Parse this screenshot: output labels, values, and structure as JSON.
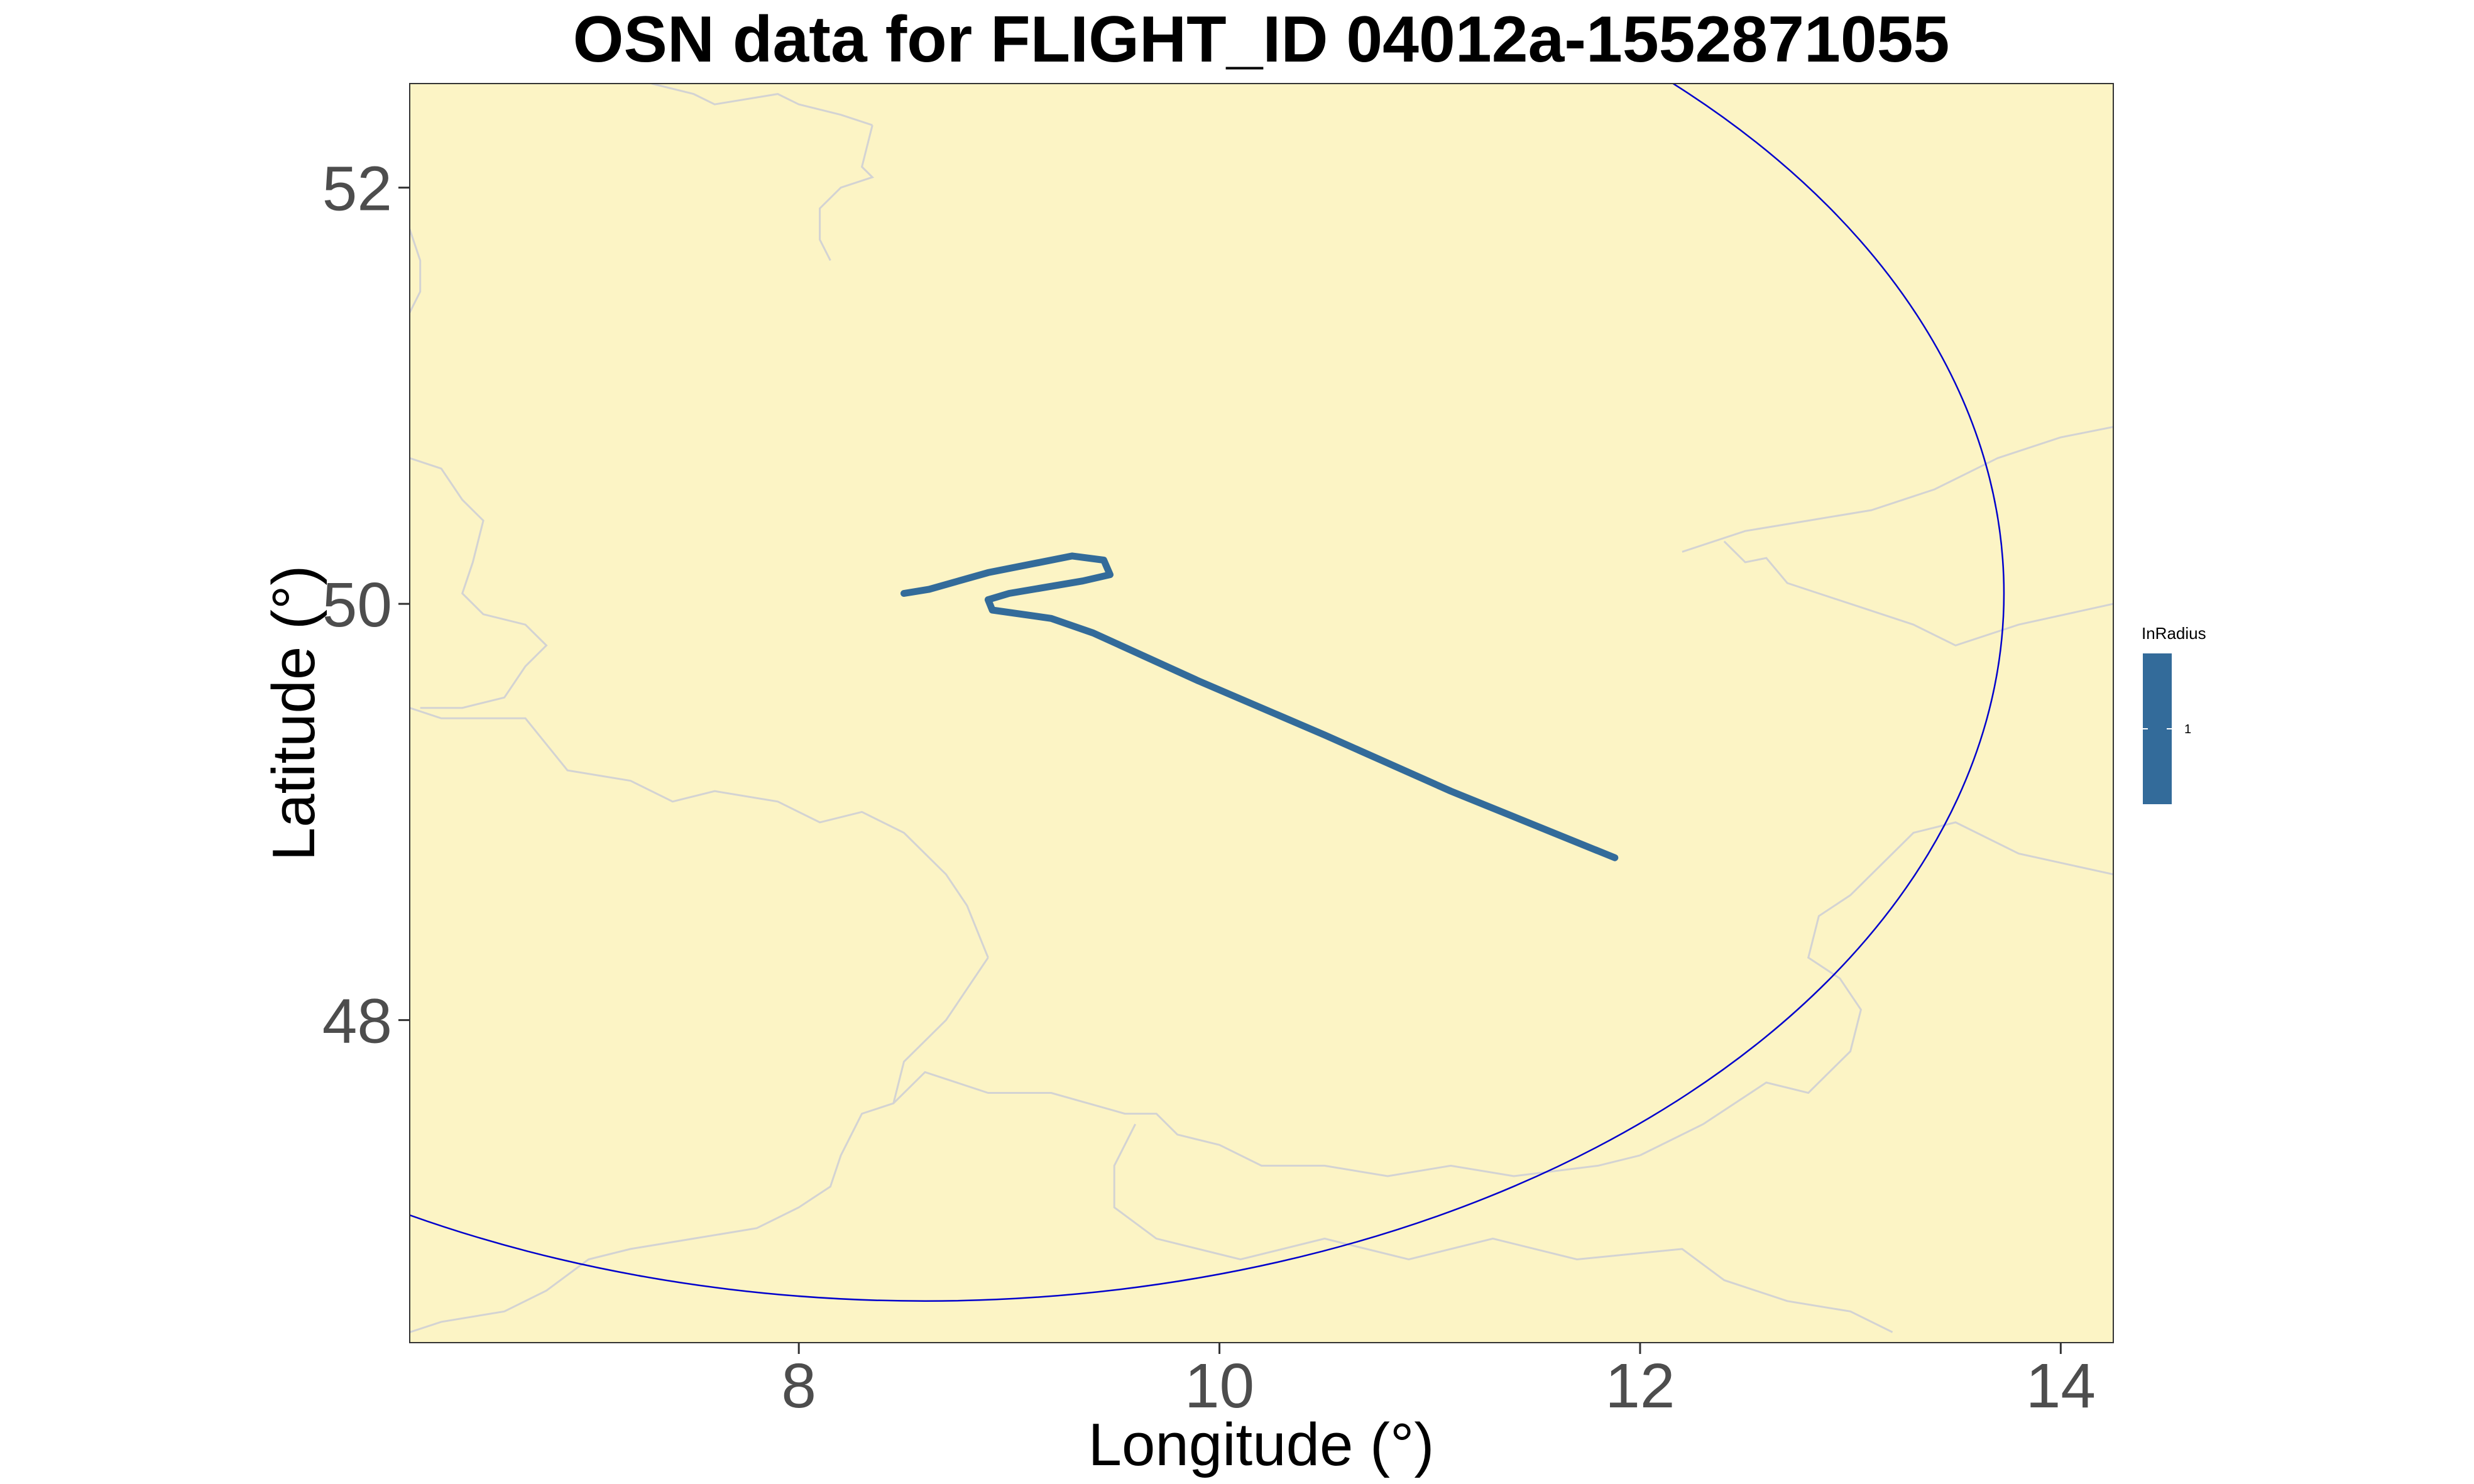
{
  "chart_data": {
    "type": "line",
    "title": "OSN data for FLIGHT_ID 04012a-1552871055",
    "xlabel": "Longitude (°)",
    "ylabel": "Latitude (°)",
    "xlim": [
      6.15,
      14.25
    ],
    "ylim": [
      46.45,
      52.5
    ],
    "x_ticks": [
      8,
      10,
      12,
      14
    ],
    "y_ticks": [
      48,
      50,
      52
    ],
    "x_tick_labels": [
      "8",
      "10",
      "12",
      "14"
    ],
    "y_tick_labels": [
      "48",
      "50",
      "52"
    ],
    "grid": false,
    "panel_background": "#fcf4c5",
    "border_color": "#d3d3d3",
    "legend": {
      "title": "InRadius",
      "position": "right",
      "items": [
        {
          "label": "1",
          "color": "#336b9a"
        }
      ]
    },
    "radius_circle": {
      "color": "#0000cc",
      "center": [
        8.6,
        50.05
      ],
      "radius_deg_lon": 5.13,
      "radius_deg_lat": 3.4
    },
    "series": [
      {
        "color": "#336b9a",
        "x": [
          8.5,
          8.62,
          8.9,
          9.3,
          9.45,
          9.48,
          9.35,
          9.0,
          8.9,
          8.92,
          9.2,
          9.4,
          9.9,
          10.5,
          11.1,
          11.88
        ],
        "y": [
          50.05,
          50.07,
          50.15,
          50.23,
          50.21,
          50.14,
          50.11,
          50.05,
          50.02,
          49.97,
          49.93,
          49.86,
          49.63,
          49.37,
          49.1,
          48.78
        ]
      }
    ],
    "borders": [
      {
        "x": [
          6.15,
          6.3,
          6.7,
          6.9,
          7.2,
          7.4,
          7.6,
          7.9,
          8.1,
          8.3,
          8.5,
          8.7,
          8.8,
          8.9
        ],
        "y": [
          49.5,
          49.45,
          49.45,
          49.2,
          49.15,
          49.05,
          49.1,
          49.05,
          48.95,
          49.0,
          48.9,
          48.7,
          48.55,
          48.3
        ]
      },
      {
        "x": [
          8.9,
          8.7,
          8.5,
          8.45,
          8.3,
          8.2,
          8.15,
          8.0,
          7.8,
          7.5,
          7.2,
          7.0,
          6.8,
          6.6,
          6.3,
          6.15
        ],
        "y": [
          48.3,
          48.0,
          47.8,
          47.6,
          47.55,
          47.35,
          47.2,
          47.1,
          47.0,
          46.95,
          46.9,
          46.85,
          46.7,
          46.6,
          46.55,
          46.5
        ]
      },
      {
        "x": [
          8.45,
          8.6,
          8.9,
          9.2,
          9.55,
          9.7,
          9.8,
          10.0,
          10.2,
          10.5,
          10.8,
          11.1,
          11.4,
          11.8,
          12.0
        ],
        "y": [
          47.6,
          47.75,
          47.65,
          47.65,
          47.55,
          47.55,
          47.45,
          47.4,
          47.3,
          47.3,
          47.25,
          47.3,
          47.25,
          47.3,
          47.35
        ]
      },
      {
        "x": [
          9.6,
          9.5,
          9.5,
          9.7,
          10.1,
          10.5,
          10.9,
          11.3,
          11.7,
          12.2,
          12.4,
          12.7,
          13.0,
          13.2
        ],
        "y": [
          47.5,
          47.3,
          47.1,
          46.95,
          46.85,
          46.95,
          46.85,
          46.95,
          46.85,
          46.9,
          46.75,
          46.65,
          46.6,
          46.5
        ]
      },
      {
        "x": [
          12.0,
          12.3,
          12.6,
          12.8,
          13.0,
          13.05,
          12.95,
          12.8,
          12.85,
          13.0,
          13.3,
          13.5,
          13.8,
          14.25
        ],
        "y": [
          47.35,
          47.5,
          47.7,
          47.65,
          47.85,
          48.05,
          48.2,
          48.3,
          48.5,
          48.6,
          48.9,
          48.95,
          48.8,
          48.7
        ]
      },
      {
        "x": [
          12.4,
          12.5,
          12.6,
          12.7,
          13.0,
          13.3,
          13.5,
          13.8,
          14.25
        ],
        "y": [
          50.3,
          50.2,
          50.22,
          50.1,
          50.0,
          49.9,
          49.8,
          49.9,
          50.0
        ]
      },
      {
        "x": [
          12.2,
          12.5,
          12.8,
          13.1,
          13.4,
          13.7,
          14.0,
          14.25
        ],
        "y": [
          50.25,
          50.35,
          50.4,
          50.45,
          50.55,
          50.7,
          50.8,
          50.85
        ]
      },
      {
        "x": [
          6.15,
          6.3,
          6.4,
          6.5,
          6.45,
          6.4,
          6.5,
          6.7,
          6.8,
          6.7,
          6.6,
          6.4,
          6.2
        ],
        "y": [
          50.7,
          50.65,
          50.5,
          50.4,
          50.2,
          50.05,
          49.95,
          49.9,
          49.8,
          49.7,
          49.55,
          49.5,
          49.5
        ]
      },
      {
        "x": [
          6.15,
          6.2,
          6.2,
          6.15
        ],
        "y": [
          51.8,
          51.65,
          51.5,
          51.4
        ]
      },
      {
        "x": [
          7.3,
          7.5,
          7.6,
          7.9,
          8.0,
          8.2,
          8.35
        ],
        "y": [
          52.5,
          52.45,
          52.4,
          52.45,
          52.4,
          52.35,
          52.3
        ]
      },
      {
        "x": [
          8.35,
          8.3,
          8.35,
          8.2,
          8.1,
          8.1,
          8.15
        ],
        "y": [
          52.3,
          52.1,
          52.05,
          52.0,
          51.9,
          51.75,
          51.65
        ]
      }
    ]
  }
}
